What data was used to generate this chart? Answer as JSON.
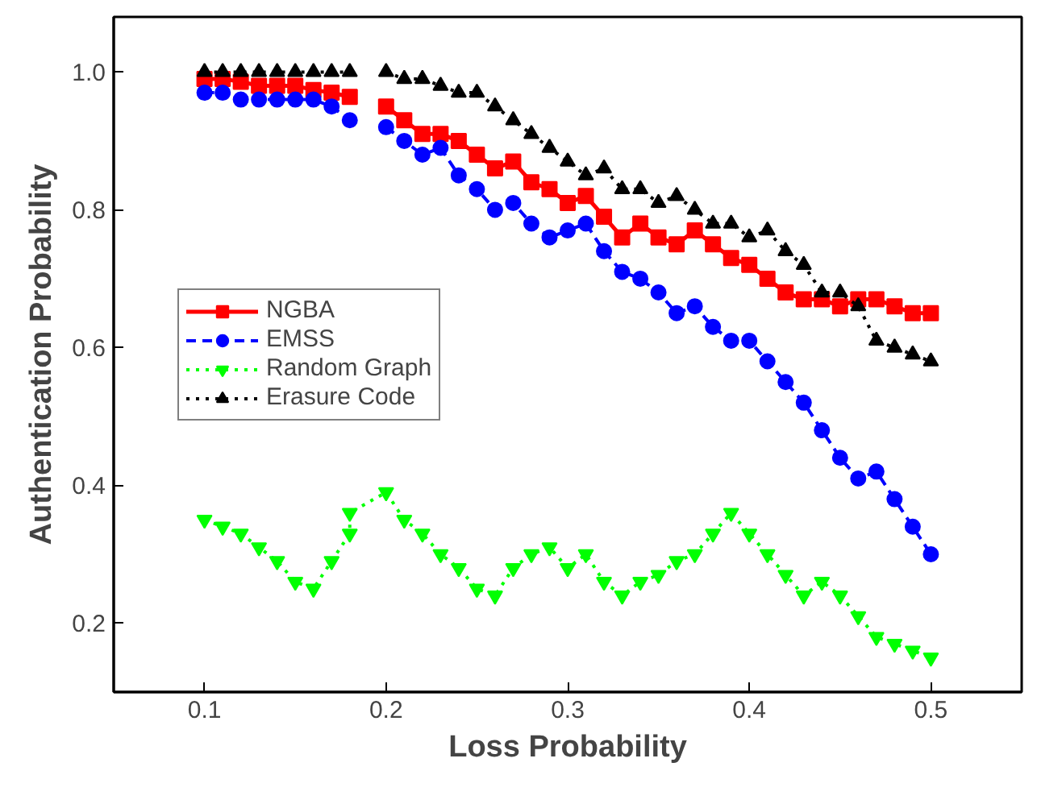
{
  "chart_data": {
    "type": "line",
    "xlabel": "Loss Probability",
    "ylabel": "Authentication Probability",
    "x": [
      0.1,
      0.11,
      0.12,
      0.13,
      0.14,
      0.15,
      0.16,
      0.17,
      0.18,
      0.19,
      0.2,
      0.21,
      0.22,
      0.23,
      0.24,
      0.25,
      0.26,
      0.27,
      0.28,
      0.29,
      0.3,
      0.31,
      0.32,
      0.33,
      0.34,
      0.35,
      0.36,
      0.37,
      0.38,
      0.39,
      0.4,
      0.41,
      0.42,
      0.43,
      0.44,
      0.45,
      0.46,
      0.47,
      0.48,
      0.49,
      0.5
    ],
    "series": [
      {
        "name": "NGBA",
        "color": "#ff0000",
        "marker": "square",
        "line_style": "solid",
        "values": [
          0.99,
          0.99,
          0.986,
          0.98,
          0.98,
          0.98,
          0.974,
          0.97,
          0.964,
          null,
          0.95,
          0.93,
          0.91,
          0.91,
          0.9,
          0.88,
          0.86,
          0.87,
          0.84,
          0.83,
          0.81,
          0.82,
          0.79,
          0.76,
          0.78,
          0.76,
          0.75,
          0.77,
          0.75,
          0.73,
          0.72,
          0.7,
          0.68,
          0.67,
          0.67,
          0.66,
          0.67,
          0.67,
          0.66,
          0.65,
          0.65
        ]
      },
      {
        "name": "EMSS",
        "color": "#0000ff",
        "marker": "circle",
        "line_style": "dashed",
        "values": [
          0.97,
          0.97,
          0.96,
          0.96,
          0.96,
          0.96,
          0.96,
          0.95,
          0.93,
          null,
          0.92,
          0.9,
          0.88,
          0.89,
          0.85,
          0.83,
          0.8,
          0.81,
          0.78,
          0.76,
          0.77,
          0.78,
          0.74,
          0.71,
          0.7,
          0.68,
          0.65,
          0.66,
          0.63,
          0.61,
          0.61,
          0.58,
          0.55,
          0.52,
          0.48,
          0.44,
          0.41,
          0.42,
          0.38,
          0.34,
          0.3
        ]
      },
      {
        "name": "Random Graph",
        "color": "#00ff00",
        "marker": "triangle_down",
        "line_style": "dotted",
        "x": [
          0.1,
          0.11,
          0.12,
          0.13,
          0.14,
          0.15,
          0.16,
          0.17,
          0.18,
          0.18,
          0.2,
          0.21,
          0.22,
          0.23,
          0.24,
          0.25,
          0.26,
          0.27,
          0.28,
          0.29,
          0.3,
          0.31,
          0.32,
          0.33,
          0.34,
          0.35,
          0.36,
          0.37,
          0.38,
          0.39,
          0.4,
          0.41,
          0.42,
          0.43,
          0.44,
          0.45,
          0.46,
          0.47,
          0.48,
          0.49,
          0.5
        ],
        "values": [
          0.35,
          0.34,
          0.33,
          0.31,
          0.29,
          0.26,
          0.25,
          0.29,
          0.33,
          0.36,
          0.39,
          0.35,
          0.33,
          0.3,
          0.28,
          0.25,
          0.24,
          0.28,
          0.3,
          0.31,
          0.28,
          0.3,
          0.26,
          0.24,
          0.26,
          0.27,
          0.29,
          0.3,
          0.33,
          0.36,
          0.33,
          0.3,
          0.27,
          0.24,
          0.26,
          0.24,
          0.21,
          0.18,
          0.17,
          0.16,
          0.15
        ]
      },
      {
        "name": "Erasure Code",
        "color": "#000000",
        "marker": "triangle",
        "line_style": "dotted",
        "values": [
          1.0,
          1.0,
          1.0,
          1.0,
          1.0,
          1.0,
          1.0,
          1.0,
          1.0,
          null,
          1.0,
          0.99,
          0.99,
          0.98,
          0.97,
          0.97,
          0.95,
          0.93,
          0.91,
          0.89,
          0.87,
          0.85,
          0.86,
          0.83,
          0.83,
          0.81,
          0.82,
          0.8,
          0.78,
          0.78,
          0.76,
          0.77,
          0.74,
          0.72,
          0.68,
          0.68,
          0.66,
          0.61,
          0.6,
          0.59,
          0.58
        ]
      }
    ],
    "xlim": [
      0.05,
      0.55
    ],
    "ylim": [
      0.1,
      1.08
    ],
    "xticks": [
      0.1,
      0.2,
      0.3,
      0.4,
      0.5
    ],
    "yticks": [
      {
        "value": 0.2,
        "label": "0.2"
      },
      {
        "value": 0.4,
        "label": "0.4"
      },
      {
        "value": 0.6,
        "label": "0.6"
      },
      {
        "value": 0.8,
        "label": "0.8"
      },
      {
        "value": 1.0,
        "label": "1.0"
      }
    ],
    "grid": false,
    "legend": "center left"
  }
}
